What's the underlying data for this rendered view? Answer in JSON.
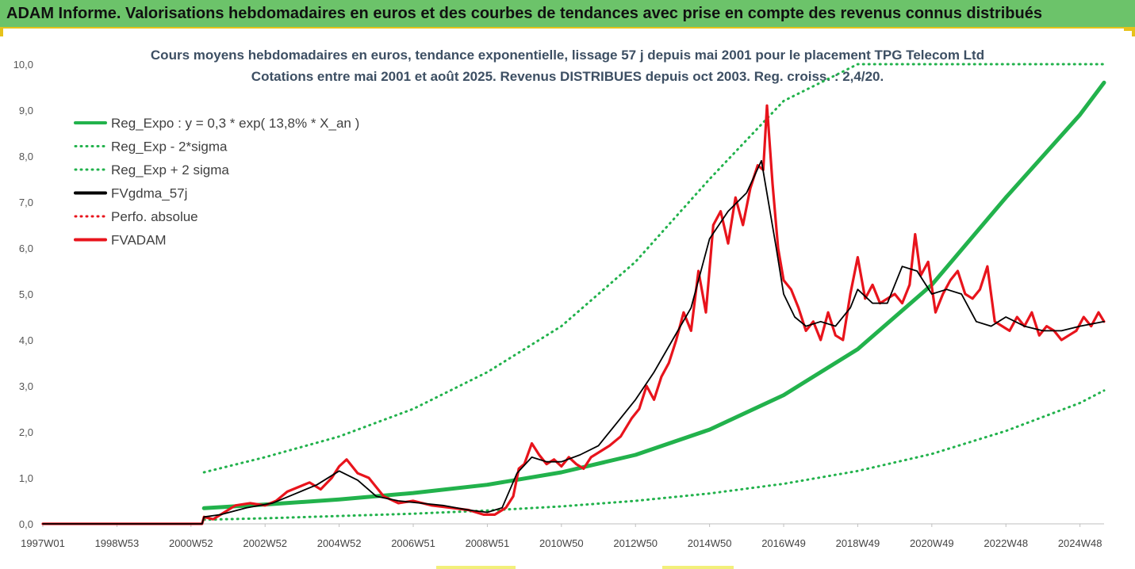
{
  "banner": {
    "title": "ADAM Informe. Valorisations hebdomadaires en euros et des courbes de tendances avec prise en compte des revenus connus distribués"
  },
  "colors": {
    "banner_bg": "#6cc36a",
    "accent_yellow": "#e6c21a",
    "title_text": "#3d4f63",
    "green": "#22b24c",
    "black": "#000000",
    "red": "#e8141c"
  },
  "chart_data": {
    "type": "line",
    "title_line1": "Cours moyens hebdomadaires en euros, tendance exponentielle, lissage 57 j depuis mai 2001 pour le placement TPG Telecom Ltd",
    "title_line2": "Cotations entre mai 2001 et août 2025. Revenus DISTRIBUES depuis oct 2003. Reg. croiss. : 2,4/20.",
    "ylim": [
      0,
      10
    ],
    "y_ticks": [
      "0,0",
      "1,0",
      "2,0",
      "3,0",
      "4,0",
      "5,0",
      "6,0",
      "7,0",
      "8,0",
      "9,0",
      "10,0"
    ],
    "x_range": [
      1997.0,
      2025.65
    ],
    "x_ticks": [
      {
        "label": "1997W01",
        "year": 1997.0
      },
      {
        "label": "1998W53",
        "year": 1999.0
      },
      {
        "label": "2000W52",
        "year": 2001.0
      },
      {
        "label": "2002W52",
        "year": 2003.0
      },
      {
        "label": "2004W52",
        "year": 2005.0
      },
      {
        "label": "2006W51",
        "year": 2007.0
      },
      {
        "label": "2008W51",
        "year": 2009.0
      },
      {
        "label": "2010W50",
        "year": 2011.0
      },
      {
        "label": "2012W50",
        "year": 2013.0
      },
      {
        "label": "2014W50",
        "year": 2015.0
      },
      {
        "label": "2016W49",
        "year": 2017.0
      },
      {
        "label": "2018W49",
        "year": 2019.0
      },
      {
        "label": "2020W49",
        "year": 2021.0
      },
      {
        "label": "2022W48",
        "year": 2023.0
      },
      {
        "label": "2024W48",
        "year": 2025.0
      }
    ],
    "legend": [
      {
        "label": "Reg_Expo : y = 0,3 * exp( 13,8% *  X_an )",
        "color": "#22b24c",
        "style": "solid"
      },
      {
        "label": "Reg_Exp - 2*sigma",
        "color": "#22b24c",
        "style": "dotted"
      },
      {
        "label": "Reg_Exp + 2 sigma",
        "color": "#22b24c",
        "style": "dotted"
      },
      {
        "label": "FVgdma_57j",
        "color": "#000000",
        "style": "solid"
      },
      {
        "label": "Perfo. absolue",
        "color": "#e8141c",
        "style": "dotted"
      },
      {
        "label": "FVADAM",
        "color": "#e8141c",
        "style": "solid"
      }
    ],
    "series": [
      {
        "name": "Reg_Expo : y = 0,3 * exp( 13,8% *  X_an )",
        "x": [
          2001.35,
          2003,
          2005,
          2007,
          2009,
          2011,
          2013,
          2015,
          2017,
          2019,
          2021,
          2023,
          2025,
          2025.65
        ],
        "values": [
          0.34,
          0.42,
          0.53,
          0.67,
          0.85,
          1.12,
          1.5,
          2.05,
          2.8,
          3.8,
          5.2,
          7.1,
          8.9,
          9.6
        ]
      },
      {
        "name": "Reg_Exp - 2*sigma",
        "x": [
          2001.35,
          2003,
          2005,
          2007,
          2009,
          2011,
          2013,
          2015,
          2017,
          2019,
          2021,
          2023,
          2025,
          2025.65
        ],
        "values": [
          0.09,
          0.12,
          0.17,
          0.22,
          0.29,
          0.38,
          0.5,
          0.66,
          0.87,
          1.15,
          1.52,
          2.02,
          2.63,
          2.9
        ]
      },
      {
        "name": "Reg_Exp + 2 sigma",
        "x": [
          2001.35,
          2003,
          2005,
          2007,
          2009,
          2011,
          2013,
          2015,
          2017,
          2019,
          2021,
          2023,
          2025,
          2025.65
        ],
        "values": [
          1.12,
          1.45,
          1.9,
          2.5,
          3.3,
          4.3,
          5.7,
          7.5,
          9.2,
          10.0,
          10.0,
          10.0,
          10.0,
          10.0
        ]
      },
      {
        "name": "FVgdma_57j",
        "x": [
          1997.0,
          2001.3,
          2001.35,
          2001.8,
          2002.5,
          2003.2,
          2003.8,
          2004.4,
          2005.0,
          2005.5,
          2006.0,
          2006.6,
          2007.2,
          2007.8,
          2008.5,
          2009.0,
          2009.4,
          2009.8,
          2010.2,
          2010.6,
          2011.0,
          2011.5,
          2012.0,
          2012.5,
          2013.0,
          2013.5,
          2014.0,
          2014.5,
          2015.0,
          2015.5,
          2016.0,
          2016.4,
          2016.8,
          2017.0,
          2017.3,
          2017.6,
          2018.0,
          2018.4,
          2018.8,
          2019.0,
          2019.4,
          2019.8,
          2020.2,
          2020.6,
          2021.0,
          2021.4,
          2021.8,
          2022.2,
          2022.6,
          2023.0,
          2023.5,
          2024.0,
          2024.5,
          2025.0,
          2025.65
        ],
        "values": [
          0.0,
          0.0,
          0.15,
          0.2,
          0.35,
          0.45,
          0.65,
          0.85,
          1.15,
          0.95,
          0.6,
          0.5,
          0.45,
          0.4,
          0.3,
          0.25,
          0.35,
          1.1,
          1.45,
          1.35,
          1.35,
          1.5,
          1.7,
          2.2,
          2.7,
          3.3,
          4.0,
          4.7,
          6.2,
          6.8,
          7.2,
          7.9,
          6.0,
          5.0,
          4.5,
          4.3,
          4.4,
          4.3,
          4.7,
          5.1,
          4.8,
          4.8,
          5.6,
          5.5,
          5.0,
          5.1,
          5.0,
          4.4,
          4.3,
          4.5,
          4.3,
          4.2,
          4.2,
          4.3,
          4.4
        ]
      },
      {
        "name": "FVADAM",
        "x": [
          1997.0,
          2001.3,
          2001.35,
          2001.6,
          2001.9,
          2002.2,
          2002.6,
          2003.0,
          2003.3,
          2003.6,
          2003.9,
          2004.2,
          2004.5,
          2004.8,
          2005.0,
          2005.2,
          2005.5,
          2005.8,
          2006.2,
          2006.6,
          2007.0,
          2007.5,
          2008.0,
          2008.5,
          2008.9,
          2009.2,
          2009.5,
          2009.7,
          2009.85,
          2010.0,
          2010.2,
          2010.4,
          2010.6,
          2010.8,
          2011.0,
          2011.2,
          2011.4,
          2011.6,
          2011.8,
          2012.0,
          2012.3,
          2012.6,
          2012.9,
          2013.1,
          2013.3,
          2013.5,
          2013.7,
          2013.9,
          2014.1,
          2014.3,
          2014.5,
          2014.7,
          2014.9,
          2015.1,
          2015.3,
          2015.5,
          2015.7,
          2015.9,
          2016.1,
          2016.3,
          2016.45,
          2016.55,
          2016.7,
          2016.85,
          2017.0,
          2017.2,
          2017.4,
          2017.6,
          2017.8,
          2018.0,
          2018.2,
          2018.4,
          2018.6,
          2018.8,
          2019.0,
          2019.2,
          2019.4,
          2019.6,
          2019.8,
          2020.0,
          2020.2,
          2020.4,
          2020.55,
          2020.7,
          2020.9,
          2021.1,
          2021.3,
          2021.5,
          2021.7,
          2021.9,
          2022.1,
          2022.3,
          2022.5,
          2022.7,
          2022.9,
          2023.1,
          2023.3,
          2023.5,
          2023.7,
          2023.9,
          2024.1,
          2024.3,
          2024.5,
          2024.7,
          2024.9,
          2025.1,
          2025.3,
          2025.5,
          2025.65
        ],
        "values": [
          0.0,
          0.0,
          0.15,
          0.1,
          0.25,
          0.4,
          0.45,
          0.4,
          0.5,
          0.7,
          0.8,
          0.9,
          0.75,
          1.0,
          1.25,
          1.4,
          1.1,
          1.0,
          0.6,
          0.45,
          0.5,
          0.4,
          0.35,
          0.3,
          0.2,
          0.2,
          0.35,
          0.6,
          1.2,
          1.3,
          1.75,
          1.5,
          1.3,
          1.4,
          1.25,
          1.45,
          1.3,
          1.2,
          1.45,
          1.55,
          1.7,
          1.9,
          2.3,
          2.5,
          3.0,
          2.7,
          3.2,
          3.5,
          4.0,
          4.6,
          4.2,
          5.5,
          4.6,
          6.5,
          6.8,
          6.1,
          7.1,
          6.5,
          7.3,
          7.8,
          7.7,
          9.1,
          7.4,
          6.0,
          5.3,
          5.1,
          4.7,
          4.2,
          4.4,
          4.0,
          4.6,
          4.1,
          4.0,
          5.0,
          5.8,
          4.9,
          5.2,
          4.8,
          4.9,
          5.0,
          4.8,
          5.2,
          6.3,
          5.4,
          5.7,
          4.6,
          5.0,
          5.3,
          5.5,
          5.0,
          4.9,
          5.1,
          5.6,
          4.4,
          4.3,
          4.2,
          4.5,
          4.3,
          4.6,
          4.1,
          4.3,
          4.2,
          4.0,
          4.1,
          4.2,
          4.5,
          4.3,
          4.6,
          4.4
        ]
      },
      {
        "name": "Perfo. absolue",
        "x": [
          1997.0,
          2001.3,
          2001.35,
          2001.6,
          2001.9,
          2002.2,
          2002.6,
          2003.0,
          2003.3,
          2003.6,
          2003.9,
          2004.2,
          2004.5,
          2004.8,
          2005.0,
          2005.2,
          2005.5,
          2005.8,
          2006.2,
          2006.6,
          2007.0,
          2007.5,
          2008.0,
          2008.5,
          2008.9,
          2009.2,
          2009.5,
          2009.7,
          2009.85,
          2010.0,
          2010.2,
          2010.4,
          2010.6,
          2010.8,
          2011.0,
          2011.2,
          2011.4,
          2011.6,
          2011.8,
          2012.0,
          2012.3,
          2012.6,
          2012.9,
          2013.1,
          2013.3,
          2013.5,
          2013.7,
          2013.9,
          2014.1,
          2014.3,
          2014.5,
          2014.7,
          2014.9,
          2015.1,
          2015.3,
          2015.5,
          2015.7,
          2015.9,
          2016.1,
          2016.3,
          2016.45,
          2016.55,
          2016.7,
          2016.85,
          2017.0,
          2017.2,
          2017.4,
          2017.6,
          2017.8,
          2018.0,
          2018.2,
          2018.4,
          2018.6,
          2018.8,
          2019.0,
          2019.2,
          2019.4,
          2019.6,
          2019.8,
          2020.0,
          2020.2,
          2020.4,
          2020.55,
          2020.7,
          2020.9,
          2021.1,
          2021.3,
          2021.5,
          2021.7,
          2021.9,
          2022.1,
          2022.3,
          2022.5,
          2022.7,
          2022.9,
          2023.1,
          2023.3,
          2023.5,
          2023.7,
          2023.9,
          2024.1,
          2024.3,
          2024.5,
          2024.7,
          2024.9,
          2025.1,
          2025.3,
          2025.5,
          2025.65
        ],
        "values": [
          0.0,
          0.0,
          0.15,
          0.1,
          0.25,
          0.4,
          0.45,
          0.4,
          0.5,
          0.7,
          0.8,
          0.9,
          0.75,
          1.0,
          1.25,
          1.4,
          1.1,
          1.0,
          0.6,
          0.45,
          0.5,
          0.4,
          0.35,
          0.3,
          0.2,
          0.2,
          0.35,
          0.6,
          1.2,
          1.3,
          1.75,
          1.5,
          1.3,
          1.4,
          1.25,
          1.45,
          1.3,
          1.2,
          1.45,
          1.55,
          1.7,
          1.9,
          2.3,
          2.5,
          3.0,
          2.7,
          3.2,
          3.5,
          4.0,
          4.6,
          4.2,
          5.5,
          4.6,
          6.5,
          6.8,
          6.1,
          7.1,
          6.5,
          7.3,
          7.8,
          7.7,
          9.1,
          7.4,
          6.0,
          5.3,
          5.1,
          4.7,
          4.2,
          4.4,
          4.0,
          4.6,
          4.1,
          4.0,
          5.0,
          5.8,
          4.9,
          5.2,
          4.8,
          4.9,
          5.0,
          4.8,
          5.2,
          6.3,
          5.4,
          5.7,
          4.6,
          5.0,
          5.3,
          5.5,
          5.0,
          4.9,
          5.1,
          5.6,
          4.4,
          4.3,
          4.2,
          4.5,
          4.3,
          4.6,
          4.1,
          4.3,
          4.2,
          4.0,
          4.1,
          4.2,
          4.5,
          4.3,
          4.6,
          4.4
        ]
      }
    ]
  }
}
